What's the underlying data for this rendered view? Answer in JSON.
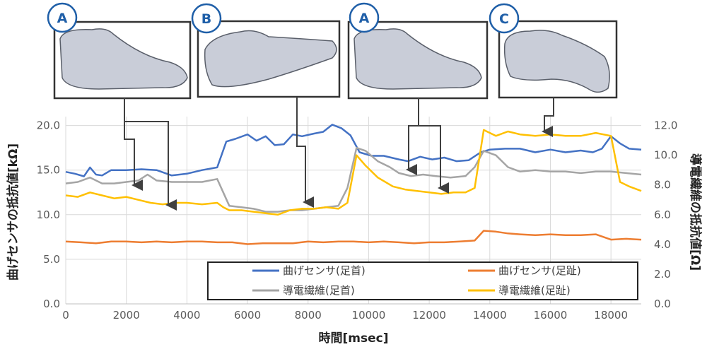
{
  "chart_data": {
    "type": "line",
    "xlabel": "時間[msec]",
    "ylabel_left": "曲げセンサの抵抗値[kΩ]",
    "ylabel_right": "導電繊維の抵抗値[Ω]",
    "xlim": [
      0,
      19000
    ],
    "ylim_left": [
      0,
      21
    ],
    "ylim_right": [
      0,
      12.6
    ],
    "x_ticks": [
      "0",
      "2000",
      "4000",
      "6000",
      "8000",
      "10000",
      "12000",
      "14000",
      "16000",
      "18000"
    ],
    "y_left_ticks": [
      "0.0",
      "5.0",
      "10.0",
      "15.0",
      "20.0"
    ],
    "y_right_ticks": [
      "0.0",
      "2.0",
      "4.0",
      "6.0",
      "8.0",
      "10.0",
      "12.0"
    ],
    "grid": true,
    "legend_position": "bottom-inside",
    "series": [
      {
        "name": "曲げセンサ(足首)",
        "axis": "left",
        "color": "#4472C4",
        "points": [
          [
            0,
            14.8
          ],
          [
            300,
            14.6
          ],
          [
            600,
            14.3
          ],
          [
            800,
            15.3
          ],
          [
            1000,
            14.5
          ],
          [
            1200,
            14.4
          ],
          [
            1500,
            15.0
          ],
          [
            2000,
            15.0
          ],
          [
            2500,
            15.1
          ],
          [
            3000,
            15.0
          ],
          [
            3500,
            14.4
          ],
          [
            4000,
            14.6
          ],
          [
            4500,
            15.0
          ],
          [
            5000,
            15.3
          ],
          [
            5300,
            18.2
          ],
          [
            5600,
            18.5
          ],
          [
            6000,
            19.0
          ],
          [
            6300,
            18.3
          ],
          [
            6600,
            18.8
          ],
          [
            6900,
            17.8
          ],
          [
            7200,
            17.9
          ],
          [
            7500,
            19.0
          ],
          [
            7800,
            18.8
          ],
          [
            8200,
            19.1
          ],
          [
            8500,
            19.3
          ],
          [
            8800,
            20.1
          ],
          [
            9100,
            19.7
          ],
          [
            9400,
            18.9
          ],
          [
            9700,
            17.0
          ],
          [
            10100,
            16.6
          ],
          [
            10500,
            16.6
          ],
          [
            11000,
            16.2
          ],
          [
            11300,
            16.0
          ],
          [
            11700,
            16.5
          ],
          [
            12100,
            16.2
          ],
          [
            12500,
            16.4
          ],
          [
            12900,
            16.0
          ],
          [
            13300,
            16.1
          ],
          [
            13700,
            17.0
          ],
          [
            14000,
            17.3
          ],
          [
            14500,
            17.4
          ],
          [
            15000,
            17.4
          ],
          [
            15500,
            17.0
          ],
          [
            16000,
            17.3
          ],
          [
            16500,
            17.0
          ],
          [
            17000,
            17.2
          ],
          [
            17400,
            17.0
          ],
          [
            17700,
            17.4
          ],
          [
            18000,
            18.8
          ],
          [
            18300,
            18.0
          ],
          [
            18600,
            17.4
          ],
          [
            19000,
            17.3
          ]
        ]
      },
      {
        "name": "曲げセンサ(足趾)",
        "axis": "left",
        "color": "#ED7D31",
        "points": [
          [
            0,
            7.0
          ],
          [
            500,
            6.9
          ],
          [
            1000,
            6.8
          ],
          [
            1500,
            7.0
          ],
          [
            2000,
            7.0
          ],
          [
            2500,
            6.9
          ],
          [
            3000,
            7.0
          ],
          [
            3500,
            6.9
          ],
          [
            4000,
            7.0
          ],
          [
            4500,
            7.0
          ],
          [
            5000,
            6.9
          ],
          [
            5500,
            6.9
          ],
          [
            6000,
            6.7
          ],
          [
            6500,
            6.8
          ],
          [
            7000,
            6.8
          ],
          [
            7500,
            6.8
          ],
          [
            8000,
            7.0
          ],
          [
            8500,
            6.9
          ],
          [
            9000,
            7.0
          ],
          [
            9500,
            7.0
          ],
          [
            10000,
            6.9
          ],
          [
            10500,
            7.0
          ],
          [
            11000,
            6.9
          ],
          [
            11500,
            6.8
          ],
          [
            12000,
            6.9
          ],
          [
            12500,
            6.9
          ],
          [
            13000,
            7.0
          ],
          [
            13500,
            7.1
          ],
          [
            13800,
            8.2
          ],
          [
            14200,
            8.1
          ],
          [
            14600,
            7.9
          ],
          [
            15000,
            7.8
          ],
          [
            15500,
            7.7
          ],
          [
            16000,
            7.8
          ],
          [
            16500,
            7.7
          ],
          [
            17000,
            7.7
          ],
          [
            17500,
            7.8
          ],
          [
            18000,
            7.2
          ],
          [
            18500,
            7.3
          ],
          [
            19000,
            7.2
          ]
        ]
      },
      {
        "name": "導電繊維(足首)",
        "axis": "right",
        "color": "#A5A5A5",
        "points": [
          [
            0,
            8.1
          ],
          [
            400,
            8.2
          ],
          [
            800,
            8.5
          ],
          [
            1200,
            8.1
          ],
          [
            1600,
            8.1
          ],
          [
            2000,
            8.2
          ],
          [
            2400,
            8.3
          ],
          [
            2700,
            8.7
          ],
          [
            3000,
            8.3
          ],
          [
            3500,
            8.2
          ],
          [
            4000,
            8.2
          ],
          [
            4500,
            8.2
          ],
          [
            5000,
            8.4
          ],
          [
            5200,
            7.5
          ],
          [
            5400,
            6.6
          ],
          [
            5800,
            6.5
          ],
          [
            6200,
            6.4
          ],
          [
            6600,
            6.2
          ],
          [
            7000,
            6.2
          ],
          [
            7400,
            6.3
          ],
          [
            7800,
            6.3
          ],
          [
            8200,
            6.4
          ],
          [
            8600,
            6.5
          ],
          [
            9000,
            6.6
          ],
          [
            9300,
            7.8
          ],
          [
            9600,
            10.5
          ],
          [
            9900,
            10.3
          ],
          [
            10300,
            9.6
          ],
          [
            10700,
            9.2
          ],
          [
            11000,
            8.8
          ],
          [
            11400,
            8.6
          ],
          [
            11800,
            8.7
          ],
          [
            12200,
            8.6
          ],
          [
            12700,
            8.5
          ],
          [
            13200,
            8.6
          ],
          [
            13500,
            9.2
          ],
          [
            13800,
            10.3
          ],
          [
            14200,
            10.0
          ],
          [
            14600,
            9.2
          ],
          [
            15000,
            8.9
          ],
          [
            15500,
            9.0
          ],
          [
            16000,
            8.9
          ],
          [
            16500,
            8.9
          ],
          [
            17000,
            8.8
          ],
          [
            17500,
            8.9
          ],
          [
            18000,
            8.9
          ],
          [
            18500,
            8.8
          ],
          [
            19000,
            8.7
          ]
        ]
      },
      {
        "name": "導電繊維(足趾)",
        "axis": "right",
        "color": "#FFC000",
        "points": [
          [
            0,
            7.3
          ],
          [
            400,
            7.2
          ],
          [
            800,
            7.5
          ],
          [
            1200,
            7.3
          ],
          [
            1600,
            7.1
          ],
          [
            2000,
            7.2
          ],
          [
            2400,
            7.0
          ],
          [
            2800,
            6.8
          ],
          [
            3200,
            6.7
          ],
          [
            3600,
            6.8
          ],
          [
            4000,
            6.8
          ],
          [
            4500,
            6.7
          ],
          [
            5000,
            6.8
          ],
          [
            5200,
            6.5
          ],
          [
            5400,
            6.3
          ],
          [
            5800,
            6.3
          ],
          [
            6200,
            6.2
          ],
          [
            6600,
            6.1
          ],
          [
            7000,
            6.0
          ],
          [
            7400,
            6.3
          ],
          [
            7800,
            6.4
          ],
          [
            8200,
            6.4
          ],
          [
            8600,
            6.5
          ],
          [
            9000,
            6.4
          ],
          [
            9300,
            6.8
          ],
          [
            9600,
            10.0
          ],
          [
            9900,
            9.3
          ],
          [
            10300,
            8.5
          ],
          [
            10800,
            7.9
          ],
          [
            11200,
            7.7
          ],
          [
            11600,
            7.6
          ],
          [
            12000,
            7.5
          ],
          [
            12400,
            7.4
          ],
          [
            12800,
            7.5
          ],
          [
            13200,
            7.5
          ],
          [
            13500,
            7.8
          ],
          [
            13800,
            11.7
          ],
          [
            14200,
            11.3
          ],
          [
            14600,
            11.6
          ],
          [
            15000,
            11.4
          ],
          [
            15500,
            11.3
          ],
          [
            16000,
            11.4
          ],
          [
            16500,
            11.3
          ],
          [
            17000,
            11.3
          ],
          [
            17500,
            11.5
          ],
          [
            18000,
            11.3
          ],
          [
            18300,
            8.2
          ],
          [
            18600,
            7.9
          ],
          [
            19000,
            7.6
          ]
        ]
      }
    ]
  },
  "photos": [
    {
      "badge": "A",
      "pose": "neutral"
    },
    {
      "badge": "B",
      "pose": "toe-pointed"
    },
    {
      "badge": "A",
      "pose": "neutral"
    },
    {
      "badge": "C",
      "pose": "toe-flexed"
    }
  ],
  "colors": {
    "badge_stroke": "#1f5fa8",
    "frame": "#333333",
    "sock": "#c9cdd8",
    "arrow": "#404040"
  }
}
